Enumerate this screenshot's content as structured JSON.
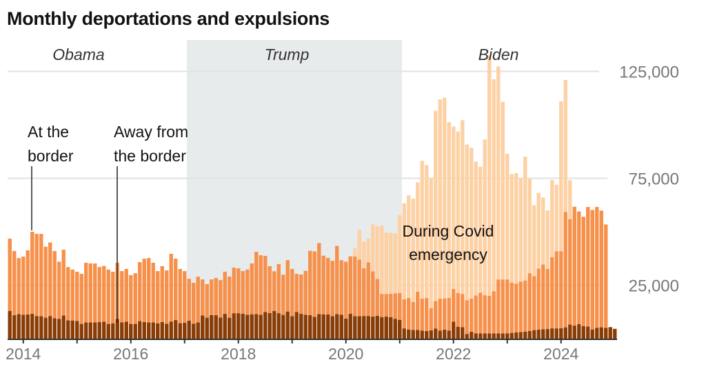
{
  "chart_data": {
    "type": "bar",
    "stacked": true,
    "title": "Monthly deportations and expulsions",
    "xlabel": "",
    "ylabel": "",
    "ylim": [
      0,
      135000
    ],
    "y_ticks": [
      {
        "value": 25000,
        "label": "25,000"
      },
      {
        "value": 75000,
        "label": "75,000"
      },
      {
        "value": 125000,
        "label": "125,000"
      }
    ],
    "x_ticks": [
      {
        "label": "2014",
        "month_index": 3
      },
      {
        "label": "2016",
        "month_index": 27
      },
      {
        "label": "2018",
        "month_index": 51
      },
      {
        "label": "2020",
        "month_index": 75
      },
      {
        "label": "2022",
        "month_index": 99
      },
      {
        "label": "2024",
        "month_index": 123
      }
    ],
    "minor_tick_month_indices": [
      15,
      39,
      63,
      87,
      111
    ],
    "start_month": "2013-10",
    "grid": true,
    "eras": [
      {
        "label": "Obama",
        "start_index": 0,
        "end_index": 39,
        "shaded": false
      },
      {
        "label": "Trump",
        "start_index": 40,
        "end_index": 87,
        "shaded": true
      },
      {
        "label": "Biden",
        "start_index": 88,
        "end_index": 133,
        "shaded": false
      }
    ],
    "series": [
      {
        "name": "Away from the border",
        "color": "#8a3c05",
        "values": [
          13,
          11,
          11.5,
          11.2,
          11.3,
          11.6,
          10.6,
          10.5,
          9.8,
          10.6,
          9.6,
          9.3,
          10.8,
          8.6,
          8.5,
          8.3,
          6.9,
          7.6,
          7.6,
          7.6,
          7.8,
          7.9,
          6.9,
          7.2,
          9.2,
          7.6,
          8.0,
          6.9,
          6.9,
          8.2,
          7.8,
          7.6,
          7.6,
          7.1,
          7.8,
          7.0,
          8.0,
          8.7,
          7.3,
          7.4,
          8.4,
          7.0,
          7.6,
          10.8,
          9.8,
          11.0,
          11.0,
          9.9,
          11.6,
          9.8,
          11.9,
          11.9,
          11.6,
          11.2,
          11.4,
          11.5,
          11.2,
          12.5,
          12.0,
          13.0,
          11.9,
          11.1,
          12.7,
          10.5,
          12.5,
          11.6,
          11.2,
          11.0,
          10.2,
          11.5,
          11.3,
          11.3,
          10.5,
          11.5,
          11.2,
          9.4,
          11.6,
          10.5,
          10.5,
          10.6,
          10.6,
          10.3,
          10.7,
          10.1,
          10.3,
          10.0,
          9.3,
          8.8,
          4.8,
          4.3,
          4.1,
          4.1,
          3.8,
          3.6,
          3.9,
          4.7,
          3.8,
          4.2,
          3.8,
          7.9,
          5.6,
          5.4,
          2.2,
          3.2,
          2.5,
          2.5,
          2.5,
          2.5,
          2.5,
          2.5,
          2.5,
          2.5,
          2.7,
          2.9,
          3.1,
          3.3,
          3.6,
          4.0,
          4.2,
          4.4,
          4.5,
          4.8,
          4.8,
          4.9,
          5.3,
          6.6,
          6.1,
          6.8,
          5.9,
          5.7,
          4.3,
          5.1,
          5.3,
          5.0,
          5.4,
          4.6
        ]
      },
      {
        "name": "At the border",
        "color": "#f7904a",
        "values": [
          33.8,
          30,
          26.2,
          27.2,
          30,
          38.4,
          38.4,
          38.5,
          33.2,
          34.4,
          31.4,
          26.7,
          30.8,
          24.9,
          23.8,
          23.0,
          23.4,
          27.9,
          27.6,
          27.6,
          25.7,
          26.1,
          25.4,
          24.1,
          26.3,
          24.0,
          24.6,
          22.8,
          23.7,
          27.6,
          29.6,
          30.1,
          27.9,
          24.5,
          26.1,
          24.9,
          31.7,
          28.7,
          25.3,
          24.2,
          19.6,
          19.1,
          21.4,
          16.9,
          15.7,
          16.7,
          17.4,
          17.5,
          19.7,
          19.2,
          21.3,
          21.0,
          20.0,
          21.1,
          23.8,
          29.1,
          27.8,
          26.2,
          21.9,
          18.5,
          23.0,
          18.8,
          24.0,
          22.1,
          17.8,
          18.4,
          20.5,
          30.1,
          30.6,
          33.2,
          27.5,
          26.5,
          25.9,
          31.9,
          25.5,
          26.6,
          26.9,
          27.9,
          26.5,
          22.3,
          25.1,
          21.2,
          17.2,
          10.8,
          10.6,
          11.0,
          11.9,
          12.6,
          13.6,
          14.7,
          13.1,
          17.9,
          14.9,
          15.4,
          10.4,
          12.9,
          14.9,
          14.6,
          15.3,
          15.4,
          15.8,
          15.5,
          15.8,
          15.6,
          17.7,
          19.0,
          17.8,
          17.5,
          19.6,
          25.2,
          25.2,
          25.2,
          23.5,
          22.8,
          23.6,
          23.9,
          27.0,
          25.2,
          28.6,
          30.3,
          28.1,
          33.3,
          36.1,
          36.0,
          53.9,
          49.3,
          55.6,
          52.7,
          51.1,
          55.9,
          55.9,
          56.5,
          54.6,
          48.4
        ]
      },
      {
        "name": "During Covid emergency",
        "color": "#fdd1a3",
        "values": [
          0,
          0,
          0,
          0,
          0,
          0,
          0,
          0,
          0,
          0,
          0,
          0,
          0,
          0,
          0,
          0,
          0,
          0,
          0,
          0,
          0,
          0,
          0,
          0,
          0,
          0,
          0,
          0,
          0,
          0,
          0,
          0,
          0,
          0,
          0,
          0,
          0,
          0,
          0,
          0,
          0,
          0,
          0,
          0,
          0,
          0,
          0,
          0,
          0,
          0,
          0,
          0,
          0,
          0,
          0,
          0,
          0,
          0,
          0,
          0,
          0,
          0,
          0,
          0,
          0,
          0,
          0,
          0,
          0,
          0,
          0,
          0,
          0,
          0,
          0,
          0,
          0,
          3.9,
          13.9,
          12.5,
          11.0,
          22.0,
          24.6,
          32.0,
          28.7,
          28.5,
          28.0,
          36.4,
          44.9,
          48.0,
          48.3,
          51.1,
          64.5,
          62.2,
          60.8,
          89.0,
          93.2,
          93.9,
          82.2,
          75.9,
          75.5,
          81.3,
          72.8,
          70.5,
          62.6,
          58.9,
          72.9,
          112.4,
          99.2,
          99.6,
          83.1,
          58.8,
          50.8,
          51.7,
          48.2,
          57.9,
          44.2,
          33.2,
          35.4,
          31.3,
          27.4,
          36.1,
          31.1,
          70.1,
          61.8,
          18.3,
          0,
          0,
          0,
          0,
          0,
          0,
          0,
          0,
          0,
          0,
          0
        ]
      }
    ],
    "annotations": [
      {
        "text_lines": [
          "At the",
          "border"
        ],
        "points_to_series": "At the border",
        "month_index": 5
      },
      {
        "text_lines": [
          "Away from",
          "the border"
        ],
        "points_to_series": "Away from the border",
        "month_index": 24
      },
      {
        "text_lines": [
          "During Covid",
          "emergency"
        ],
        "points_to_series": "During Covid emergency",
        "month_index": 104
      }
    ]
  }
}
